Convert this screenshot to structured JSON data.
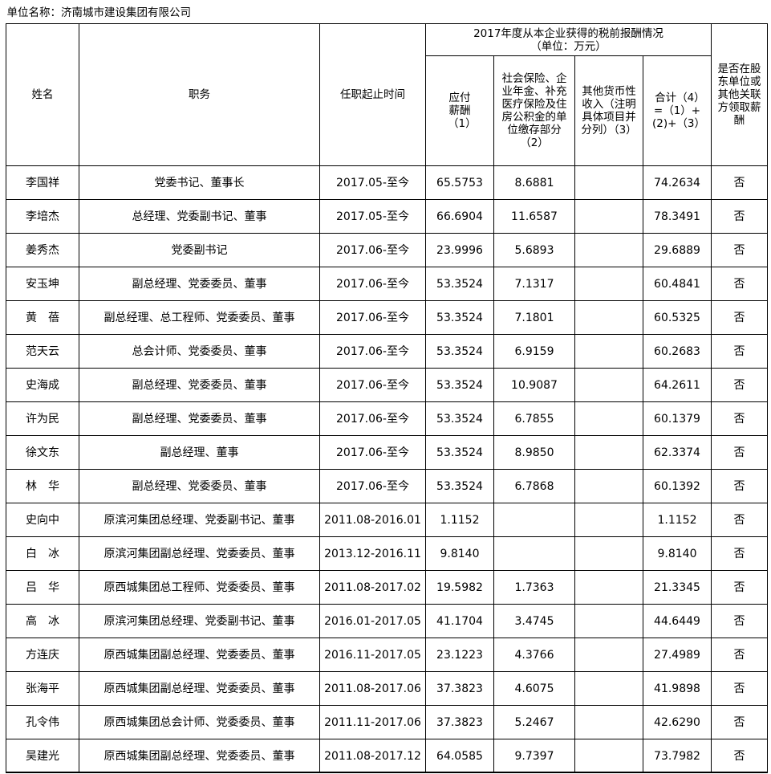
{
  "title": "单位名称：济南城市建设集团有限公司",
  "headers": {
    "name": "姓名",
    "position": "职务",
    "term": "任职起止时间",
    "group": "2017年度从本企业获得的税前报酬情况",
    "group_unit": "（单位：万元）",
    "salary": "应付薪酬（1）",
    "insurance": "社会保险、企业年金、补充医疗保险及住房公积金的单位缴存部分（2）",
    "other": "其他货币性收入（注明具体项目并分列）（3）",
    "total": "合计（4）=（1）+(2)+（3）",
    "related": "是否在股东单位或其他关联方领取薪酬"
  },
  "rows": [
    {
      "name": "李国祥",
      "position": "党委书记、董事长",
      "term": "2017.05-至今",
      "salary": "65.5753",
      "insurance": "8.6881",
      "other": "",
      "total": "74.2634",
      "related": "否"
    },
    {
      "name": "李培杰",
      "position": "总经理、党委副书记、董事",
      "term": "2017.05-至今",
      "salary": "66.6904",
      "insurance": "11.6587",
      "other": "",
      "total": "78.3491",
      "related": "否"
    },
    {
      "name": "姜秀杰",
      "position": "党委副书记",
      "term": "2017.06-至今",
      "salary": "23.9996",
      "insurance": "5.6893",
      "other": "",
      "total": "29.6889",
      "related": "否"
    },
    {
      "name": "安玉坤",
      "position": "副总经理、党委委员、董事",
      "term": "2017.06-至今",
      "salary": "53.3524",
      "insurance": "7.1317",
      "other": "",
      "total": "60.4841",
      "related": "否"
    },
    {
      "name": "黄　蓓",
      "position": "副总经理、总工程师、党委委员、董事",
      "term": "2017.06-至今",
      "salary": "53.3524",
      "insurance": "7.1801",
      "other": "",
      "total": "60.5325",
      "related": "否"
    },
    {
      "name": "范天云",
      "position": "总会计师、党委委员、董事",
      "term": "2017.06-至今",
      "salary": "53.3524",
      "insurance": "6.9159",
      "other": "",
      "total": "60.2683",
      "related": "否"
    },
    {
      "name": "史海成",
      "position": "副总经理、党委委员、董事",
      "term": "2017.06-至今",
      "salary": "53.3524",
      "insurance": "10.9087",
      "other": "",
      "total": "64.2611",
      "related": "否"
    },
    {
      "name": "许为民",
      "position": "副总经理、党委委员、董事",
      "term": "2017.06-至今",
      "salary": "53.3524",
      "insurance": "6.7855",
      "other": "",
      "total": "60.1379",
      "related": "否"
    },
    {
      "name": "徐文东",
      "position": "副总经理、董事",
      "term": "2017.06-至今",
      "salary": "53.3524",
      "insurance": "8.9850",
      "other": "",
      "total": "62.3374",
      "related": "否"
    },
    {
      "name": "林　华",
      "position": "副总经理、党委委员、董事",
      "term": "2017.06-至今",
      "salary": "53.3524",
      "insurance": "6.7868",
      "other": "",
      "total": "60.1392",
      "related": "否"
    },
    {
      "name": "史向中",
      "position": "原滨河集团总经理、党委副书记、董事",
      "term": "2011.08-2016.01",
      "salary": "1.1152",
      "insurance": "",
      "other": "",
      "total": "1.1152",
      "related": "否"
    },
    {
      "name": "白　冰",
      "position": "原滨河集团副总经理、党委委员、董事",
      "term": "2013.12-2016.11",
      "salary": "9.8140",
      "insurance": "",
      "other": "",
      "total": "9.8140",
      "related": "否"
    },
    {
      "name": "吕　华",
      "position": "原西城集团总工程师、党委委员、董事",
      "term": "2011.08-2017.02",
      "salary": "19.5982",
      "insurance": "1.7363",
      "other": "",
      "total": "21.3345",
      "related": "否"
    },
    {
      "name": "高　冰",
      "position": "原滨河集团总经理、党委副书记、董事",
      "term": "2016.01-2017.05",
      "salary": "41.1704",
      "insurance": "3.4745",
      "other": "",
      "total": "44.6449",
      "related": "否"
    },
    {
      "name": "方连庆",
      "position": "原西城集团副总经理、党委委员、董事",
      "term": "2016.11-2017.05",
      "salary": "23.1223",
      "insurance": "4.3766",
      "other": "",
      "total": "27.4989",
      "related": "否"
    },
    {
      "name": "张海平",
      "position": "原西城集团副总经理、党委委员、董事",
      "term": "2011.08-2017.06",
      "salary": "37.3823",
      "insurance": "4.6075",
      "other": "",
      "total": "41.9898",
      "related": "否"
    },
    {
      "name": "孔令伟",
      "position": "原西城集团总会计师、党委委员、董事",
      "term": "2011.11-2017.06",
      "salary": "37.3823",
      "insurance": "5.2467",
      "other": "",
      "total": "42.6290",
      "related": "否"
    },
    {
      "name": "吴建光",
      "position": "原西城集团副总经理、党委委员、董事",
      "term": "2011.08-2017.12",
      "salary": "64.0585",
      "insurance": "9.7397",
      "other": "",
      "total": "73.7982",
      "related": "否"
    }
  ]
}
